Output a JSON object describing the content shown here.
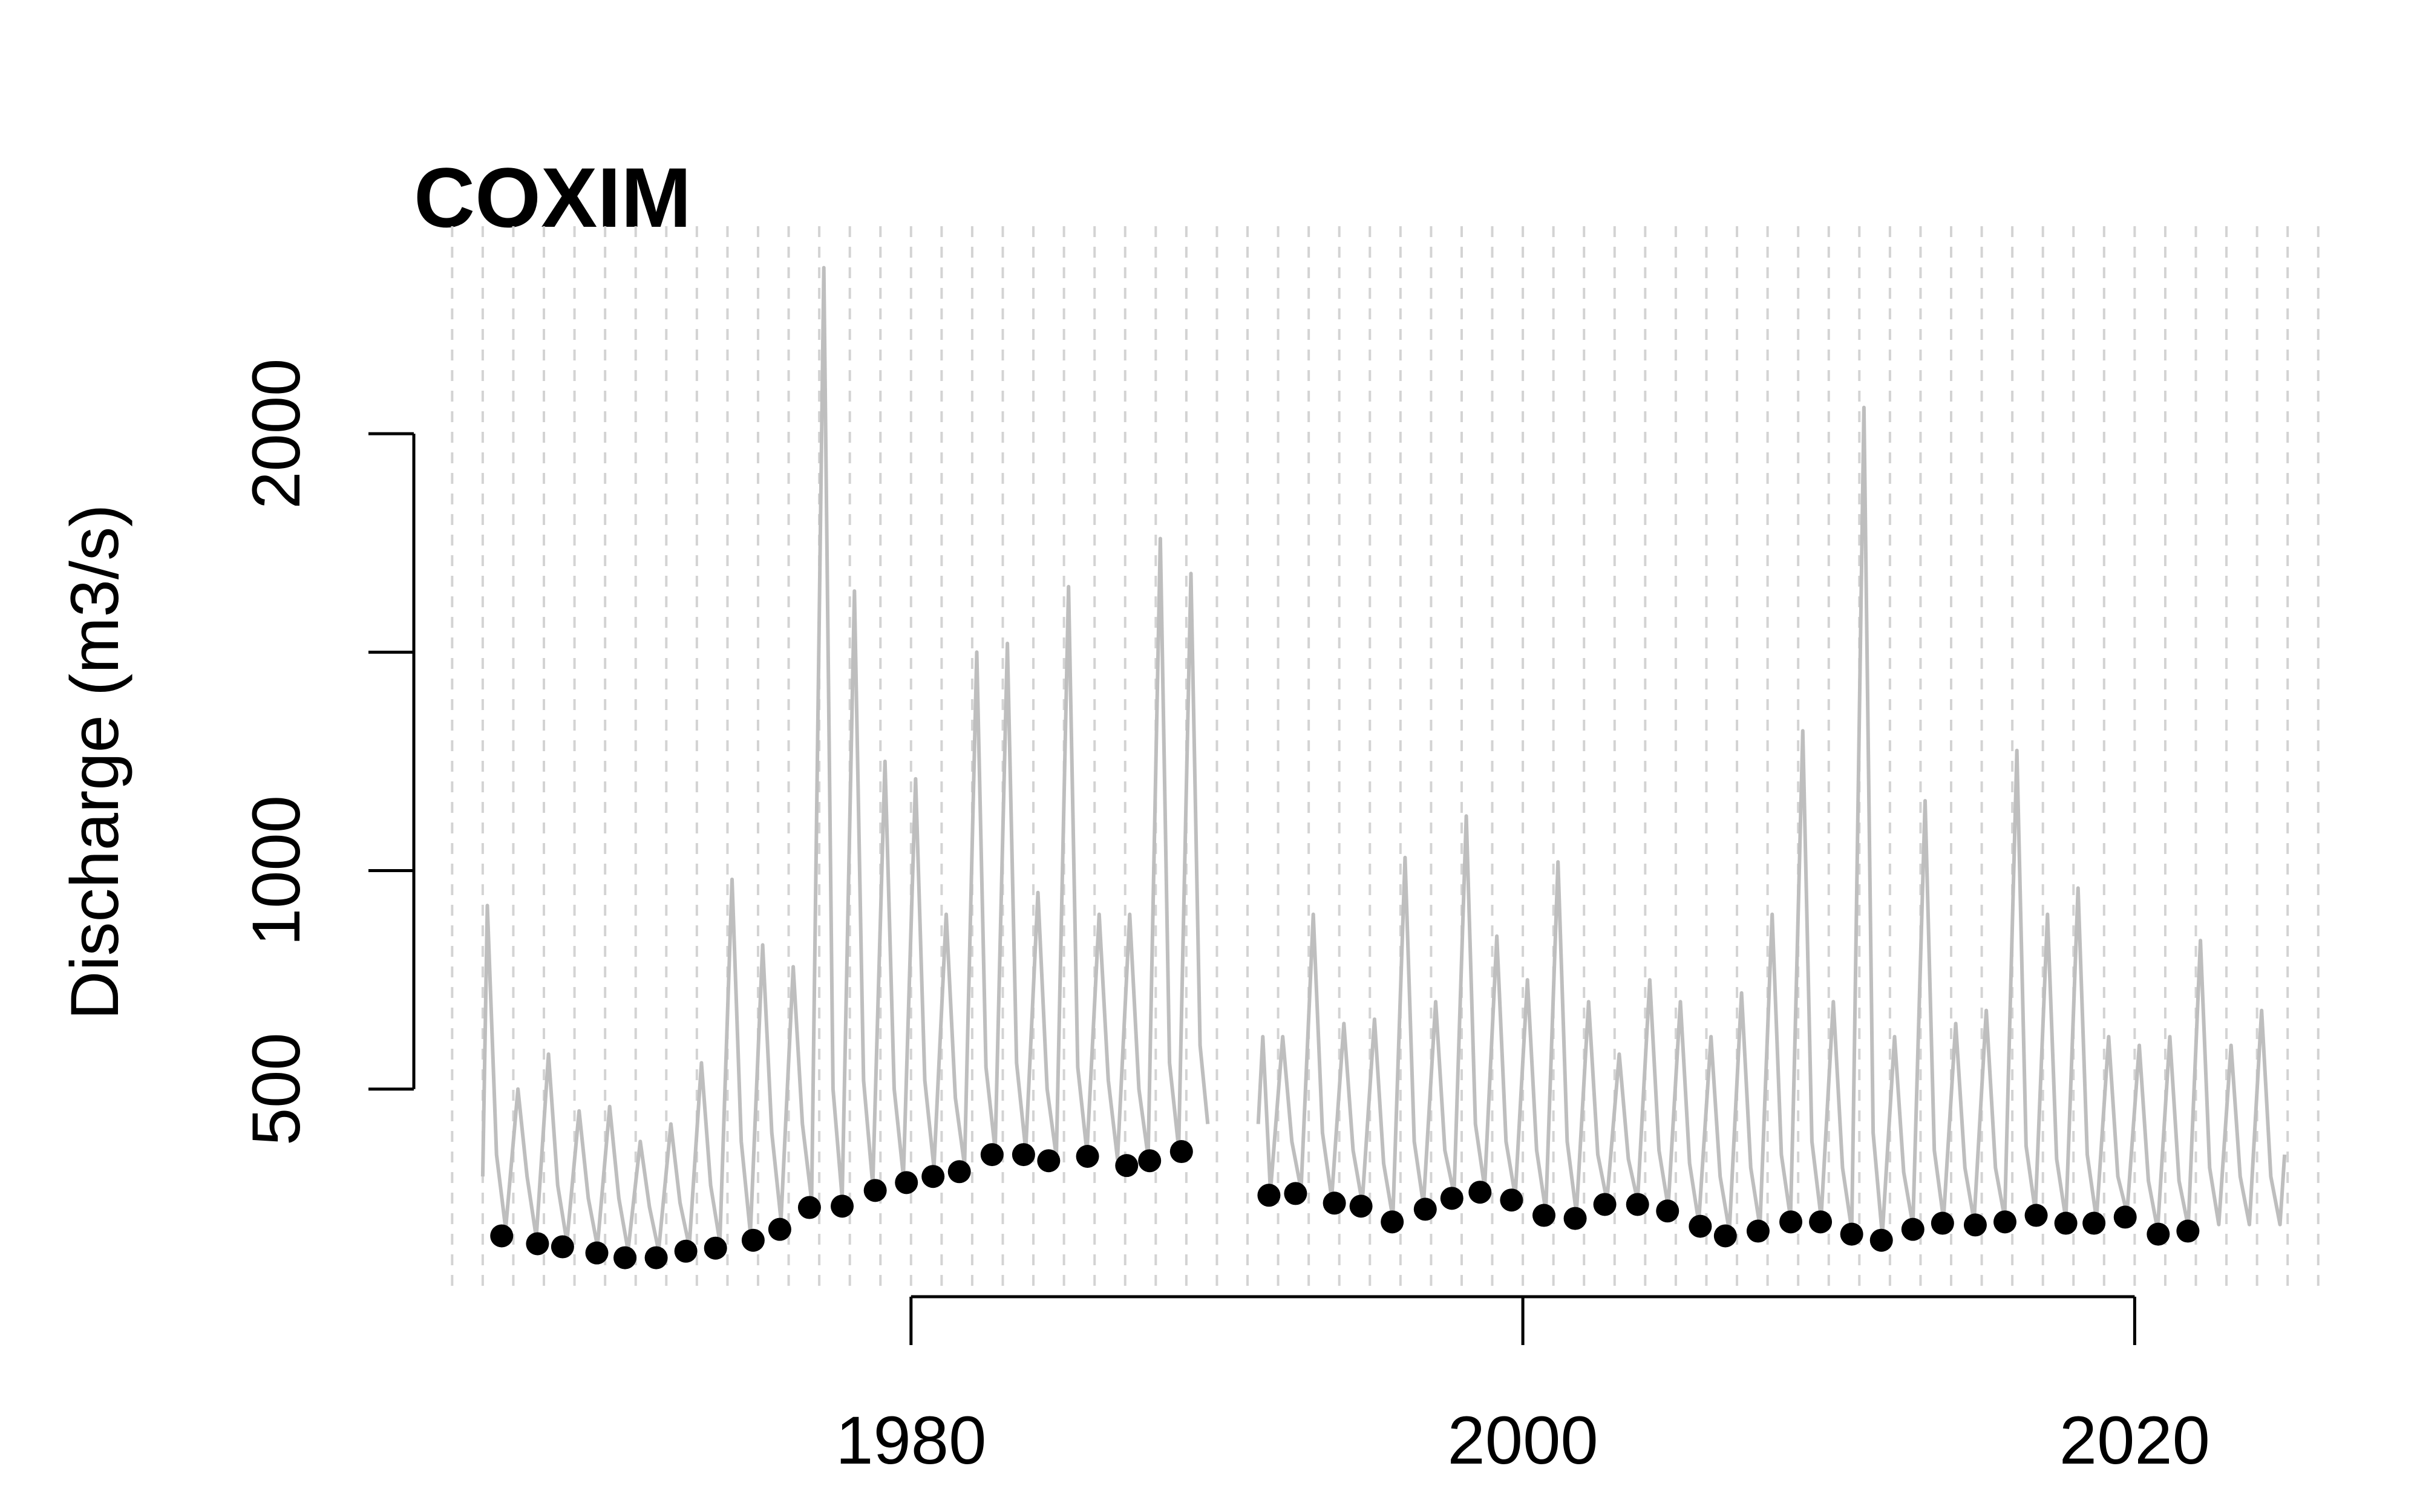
{
  "chart_data": {
    "type": "line",
    "title": "COXIM",
    "y_label": "Discharge (m3/s)",
    "xlim": [
      1964.4,
      2026.4
    ],
    "ylim": [
      29,
      2475
    ],
    "xticks": [
      1980,
      2000,
      2020
    ],
    "yticks": [
      500,
      1000,
      {
        "value": 1500,
        "label": null
      },
      2000
    ],
    "xgrid": [
      1965,
      1966,
      1967,
      1968,
      1969,
      1970,
      1971,
      1972,
      1973,
      1974,
      1975,
      1976,
      1977,
      1978,
      1979,
      1980,
      1981,
      1982,
      1983,
      1984,
      1985,
      1986,
      1987,
      1988,
      1989,
      1990,
      1991,
      1992,
      1993,
      1994,
      1995,
      1996,
      1997,
      1998,
      1999,
      2000,
      2001,
      2002,
      2003,
      2004,
      2005,
      2006,
      2007,
      2008,
      2009,
      2010,
      2011,
      2012,
      2013,
      2014,
      2015,
      2016,
      2017,
      2018,
      2019,
      2020,
      2021,
      2022,
      2023,
      2024,
      2025,
      2026
    ],
    "series": [
      {
        "type": "line",
        "color": "#bebebe",
        "x": [
          1966.0,
          1966.15,
          1966.45,
          1966.75,
          1967.15,
          1967.45,
          1967.75,
          1968.15,
          1968.45,
          1968.75,
          1969.15,
          1969.45,
          1969.75,
          1970.15,
          1970.45,
          1970.75,
          1971.15,
          1971.45,
          1971.75,
          1972.15,
          1972.45,
          1972.75,
          1973.15,
          1973.45,
          1973.75,
          1974.15,
          1974.45,
          1974.75,
          1975.15,
          1975.45,
          1975.75,
          1976.15,
          1976.45,
          1976.75,
          1977.15,
          1977.45,
          1977.75,
          1978.15,
          1978.45,
          1978.75,
          1979.15,
          1979.45,
          1979.75,
          1980.15,
          1980.45,
          1980.75,
          1981.15,
          1981.45,
          1981.75,
          1982.15,
          1982.45,
          1982.75,
          1983.15,
          1983.45,
          1983.75,
          1984.15,
          1984.45,
          1984.75,
          1985.15,
          1985.45,
          1985.75,
          1986.15,
          1986.45,
          1986.75,
          1987.15,
          1987.45,
          1987.75,
          1988.15,
          1988.45,
          1988.75,
          1989.15,
          1989.45,
          1989.7,
          1990.5,
          1991.35,
          1991.5,
          1991.75,
          1992.15,
          1992.45,
          1992.75,
          1993.15,
          1993.45,
          1993.75,
          1994.15,
          1994.45,
          1994.75,
          1995.15,
          1995.45,
          1995.75,
          1996.15,
          1996.45,
          1996.75,
          1997.15,
          1997.45,
          1997.75,
          1998.15,
          1998.45,
          1998.75,
          1999.15,
          1999.45,
          1999.75,
          2000.15,
          2000.45,
          2000.75,
          2001.15,
          2001.45,
          2001.75,
          2002.15,
          2002.45,
          2002.75,
          2003.15,
          2003.45,
          2003.75,
          2004.15,
          2004.45,
          2004.75,
          2005.15,
          2005.45,
          2005.75,
          2006.15,
          2006.45,
          2006.75,
          2007.15,
          2007.45,
          2007.75,
          2008.15,
          2008.45,
          2008.75,
          2009.15,
          2009.45,
          2009.75,
          2010.15,
          2010.45,
          2010.75,
          2011.15,
          2011.45,
          2011.75,
          2012.15,
          2012.45,
          2012.75,
          2013.15,
          2013.45,
          2013.75,
          2014.15,
          2014.45,
          2014.75,
          2015.15,
          2015.45,
          2015.75,
          2016.15,
          2016.45,
          2016.75,
          2017.15,
          2017.45,
          2017.75,
          2018.15,
          2018.45,
          2018.75,
          2019.15,
          2019.45,
          2019.75,
          2020.15,
          2020.45,
          2020.75,
          2021.15,
          2021.45,
          2021.75,
          2022.15,
          2022.45,
          2022.75,
          2023.15,
          2023.45,
          2023.75,
          2024.15,
          2024.45,
          2024.75,
          2024.9
        ],
        "values": [
          300,
          920,
          350,
          180,
          500,
          300,
          160,
          580,
          280,
          150,
          450,
          250,
          140,
          460,
          250,
          130,
          380,
          230,
          130,
          420,
          240,
          140,
          560,
          280,
          150,
          980,
          380,
          170,
          830,
          400,
          200,
          780,
          420,
          245,
          2380,
          500,
          250,
          1640,
          520,
          280,
          1250,
          500,
          300,
          1210,
          520,
          320,
          900,
          480,
          325,
          1500,
          550,
          360,
          1520,
          560,
          360,
          950,
          500,
          345,
          1650,
          550,
          355,
          900,
          520,
          340,
          900,
          500,
          345,
          1760,
          560,
          365,
          1680,
          600,
          420,
          null,
          420,
          620,
          265,
          620,
          380,
          270,
          900,
          400,
          250,
          650,
          360,
          240,
          660,
          330,
          205,
          1030,
          380,
          235,
          700,
          360,
          260,
          1125,
          420,
          275,
          850,
          380,
          255,
          750,
          360,
          220,
          1020,
          380,
          215,
          700,
          350,
          245,
          580,
          340,
          245,
          750,
          360,
          230,
          700,
          330,
          195,
          620,
          300,
          175,
          720,
          320,
          185,
          900,
          350,
          205,
          1320,
          380,
          205,
          700,
          320,
          178,
          2060,
          400,
          165,
          620,
          310,
          188,
          1160,
          360,
          202,
          650,
          320,
          198,
          680,
          320,
          205,
          1275,
          370,
          220,
          900,
          340,
          202,
          960,
          350,
          202,
          620,
          300,
          216,
          600,
          290,
          178,
          620,
          290,
          185,
          840,
          320,
          190,
          600,
          300,
          190,
          680,
          300,
          190,
          350
        ]
      },
      {
        "type": "scatter",
        "color": "#000000",
        "x": [
          1966.62,
          1967.79,
          1968.61,
          1969.73,
          1970.65,
          1971.67,
          1972.64,
          1973.61,
          1974.84,
          1975.71,
          1976.68,
          1977.75,
          1978.83,
          1979.85,
          1980.72,
          1981.58,
          1982.65,
          1983.68,
          1984.5,
          1985.77,
          1987.05,
          1987.8,
          1988.84,
          1991.7,
          1992.57,
          1993.84,
          1994.71,
          1995.73,
          1996.81,
          1997.68,
          1998.6,
          1999.63,
          2000.69,
          2001.71,
          2002.68,
          2003.75,
          2004.73,
          2005.8,
          2006.62,
          2007.69,
          2008.76,
          2009.73,
          2010.75,
          2011.72,
          2012.75,
          2013.72,
          2014.79,
          2015.76,
          2016.78,
          2017.75,
          2018.67,
          2019.69,
          2020.77,
          2021.74
        ],
        "values": [
          164,
          146,
          139,
          125,
          114,
          114,
          129,
          136,
          154,
          179,
          229,
          232,
          268,
          286,
          300,
          311,
          350,
          350,
          336,
          346,
          325,
          336,
          357,
          257,
          261,
          239,
          232,
          196,
          225,
          250,
          264,
          246,
          211,
          204,
          236,
          236,
          221,
          186,
          164,
          175,
          196,
          196,
          168,
          154,
          179,
          193,
          189,
          196,
          211,
          193,
          193,
          207,
          168,
          175
        ]
      }
    ]
  }
}
